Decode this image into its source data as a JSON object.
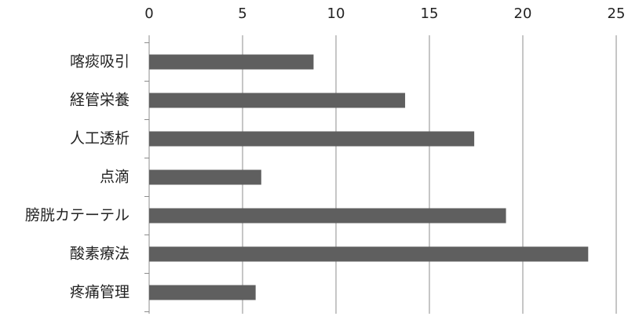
{
  "chart_data": {
    "type": "bar",
    "categories": [
      "喀痰吸引",
      "経管栄養",
      "人工透析",
      "点滴",
      "膀胱カテーテル",
      "酸素療法",
      "疼痛管理"
    ],
    "values": [
      8.8,
      13.7,
      17.4,
      6.0,
      19.1,
      23.5,
      5.7
    ],
    "color": "#5f5f5f",
    "xlim": [
      0,
      25
    ],
    "xticks": [
      0,
      5,
      10,
      15,
      20,
      25
    ],
    "grid": true
  }
}
